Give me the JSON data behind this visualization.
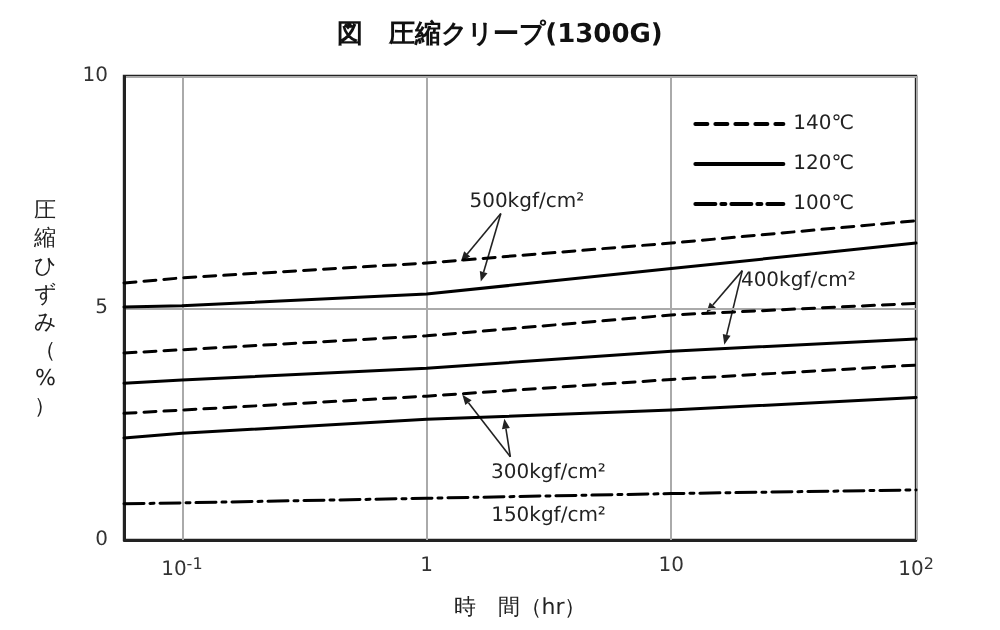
{
  "chart_data": {
    "type": "line",
    "title": "図　圧縮クリープ(1300G)",
    "xlabel": "時　間（hr）",
    "ylabel": "圧縮ひずみ（%）",
    "x": [
      0.058,
      0.1,
      1,
      10,
      100
    ],
    "series": [
      {
        "name": "140℃",
        "color": "#000000",
        "line_style": "dashed",
        "values": [
          5.54,
          5.65,
          5.97,
          6.4,
          6.88
        ]
      },
      {
        "name": "120℃",
        "color": "#000000",
        "line_style": "solid",
        "values": [
          5.02,
          5.05,
          5.3,
          5.85,
          6.4
        ]
      },
      {
        "color": "#000000",
        "line_style": "dashed",
        "values": [
          4.03,
          4.1,
          4.4,
          4.85,
          5.1
        ]
      },
      {
        "color": "#000000",
        "line_style": "solid",
        "values": [
          3.38,
          3.45,
          3.7,
          4.07,
          4.33
        ]
      },
      {
        "color": "#000000",
        "line_style": "dashed",
        "values": [
          2.73,
          2.8,
          3.1,
          3.46,
          3.77
        ]
      },
      {
        "color": "#000000",
        "line_style": "solid",
        "values": [
          2.2,
          2.3,
          2.6,
          2.8,
          3.07
        ]
      },
      {
        "name": "100℃",
        "color": "#000000",
        "line_style": "dashdot",
        "values": [
          0.78,
          0.8,
          0.9,
          1.0,
          1.08
        ]
      }
    ],
    "annotations": [
      {
        "text": "500kgf/cm²",
        "x": 1.38,
        "y": 6.0
      },
      {
        "text": "400kgf/cm²",
        "x": 13.9,
        "y": 4.9
      },
      {
        "text": "300kgf/cm²",
        "x": 1.4,
        "y": 3.13
      },
      {
        "text": "150kgf/cm²",
        "x": 3.15,
        "y": 0.94
      }
    ],
    "log": "x",
    "xlim": [
      0.058,
      100
    ],
    "xticks": [
      {
        "value": 0.1,
        "label": "10$^{-1}$"
      },
      1,
      10,
      {
        "value": 100,
        "label": "10$^{2}$"
      }
    ],
    "ylim": [
      0,
      10
    ],
    "yticks": [
      0,
      5,
      10
    ],
    "grid": true,
    "legend": "top right",
    "marker": "none"
  }
}
